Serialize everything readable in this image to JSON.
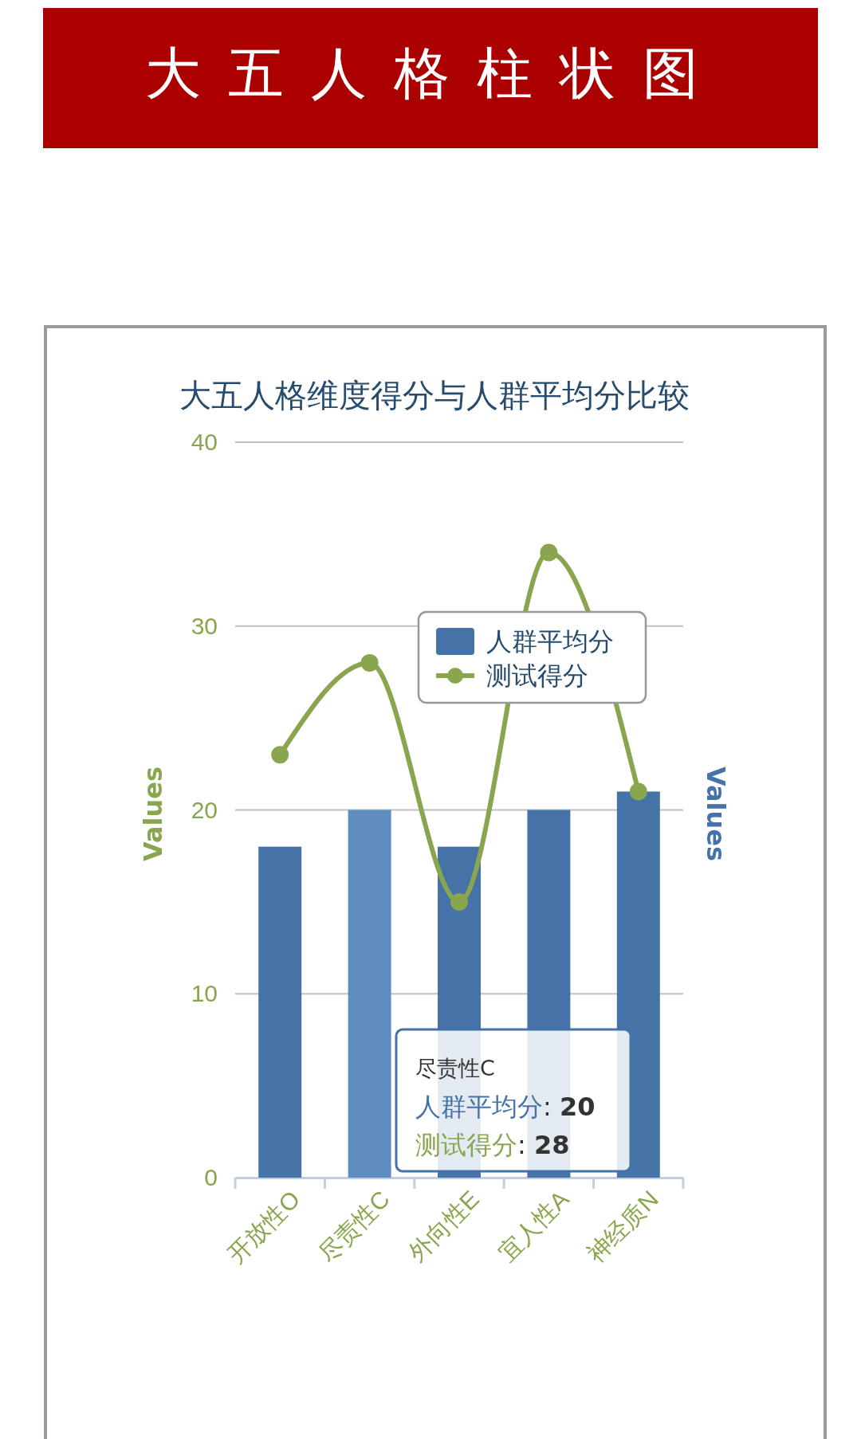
{
  "chart_data": {
    "type": "bar",
    "title": "大五人格柱状图",
    "subtitle": "大五人格维度得分与人群平均分比较",
    "ylabel": "Values",
    "y2label": "Values",
    "categories": [
      "开放性O",
      "尽责性C",
      "外向性E",
      "宜人性A",
      "神经质N"
    ],
    "series": [
      {
        "name": "人群平均分",
        "color": "#4572a7",
        "colors": [
          "#4572a7",
          "#5e8bc0",
          "#4572a7",
          "#4572a7",
          "#4572a7"
        ],
        "values": [
          18,
          20,
          18,
          20,
          21
        ]
      },
      {
        "name": "测试得分",
        "type": "line",
        "color": "#89a54e",
        "values": [
          23,
          28,
          15,
          34,
          21
        ]
      }
    ],
    "ylim": [
      0,
      40
    ],
    "yticks": [
      0,
      10,
      20,
      30,
      40
    ],
    "grid": "y",
    "legend": "top right",
    "marker": "circle",
    "line_style": "solid",
    "annotations": [
      "尽责性C",
      "人群平均分: 20",
      "测试得分: 28"
    ]
  }
}
